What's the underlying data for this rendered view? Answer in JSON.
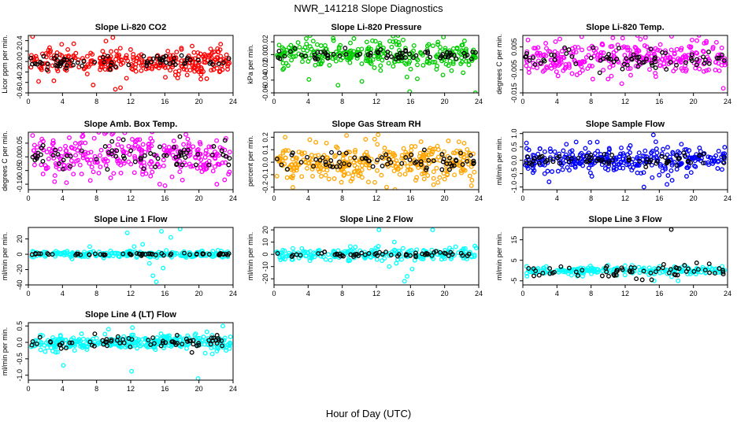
{
  "page": {
    "title": "NWR_141218  Slope Diagnostics",
    "xlabel": "Hour of Day (UTC)"
  },
  "chart_data": [
    {
      "type": "scatter",
      "title": "Slope Li-820 CO2",
      "ylabel": "Licor ppm per min.",
      "xlim": [
        0,
        24
      ],
      "ylim": [
        -0.6,
        0.5
      ],
      "xticks": [
        "0",
        "4",
        "8",
        "12",
        "16",
        "20",
        "24"
      ],
      "yticks": [
        "-0.6",
        "-0.4",
        "-0.2",
        "0.0",
        "0.2",
        "0.4"
      ],
      "series": [
        {
          "color": "#ff0000",
          "spread": 0.13,
          "count": 300,
          "values": [
            [
              10.2,
              -0.53
            ],
            [
              10.8,
              -0.5
            ],
            [
              7.6,
              -0.45
            ],
            [
              1.2,
              -0.38
            ],
            [
              0.5,
              0.48
            ],
            [
              9.9,
              0.46
            ],
            [
              11.5,
              -0.32
            ],
            [
              3.9,
              0.33
            ]
          ]
        },
        {
          "color": "#000000",
          "spread": 0.07,
          "count": 70,
          "values": []
        }
      ]
    },
    {
      "type": "scatter",
      "title": "Slope Li-820 Pressure",
      "ylabel": "kPa per min.",
      "xlim": [
        0,
        24
      ],
      "ylim": [
        -0.06,
        0.03
      ],
      "xticks": [
        "0",
        "4",
        "8",
        "12",
        "16",
        "20",
        "24"
      ],
      "yticks": [
        "-0.06",
        "-0.04",
        "-0.02",
        "0.00",
        "0.02"
      ],
      "series": [
        {
          "color": "#00cc00",
          "spread": 0.011,
          "count": 300,
          "values": [
            [
              15.9,
              -0.058
            ],
            [
              23.6,
              -0.06
            ],
            [
              7.5,
              -0.048
            ],
            [
              10.3,
              -0.042
            ],
            [
              19.8,
              -0.032
            ],
            [
              16.8,
              -0.038
            ],
            [
              12.5,
              -0.025
            ]
          ]
        },
        {
          "color": "#000000",
          "spread": 0.005,
          "count": 70,
          "values": []
        }
      ]
    },
    {
      "type": "scatter",
      "title": "Slope Li-820 Temp.",
      "ylabel": "degrees C per min.",
      "xlim": [
        0,
        24
      ],
      "ylim": [
        -0.015,
        0.01
      ],
      "xticks": [
        "0",
        "4",
        "8",
        "12",
        "16",
        "20",
        "24"
      ],
      "yticks": [
        "-0.015",
        "-0.005",
        "0.005"
      ],
      "series": [
        {
          "color": "#ff00ff",
          "spread": 0.004,
          "count": 300,
          "values": [
            [
              6.9,
              0.0095
            ],
            [
              23.5,
              -0.013
            ],
            [
              0.6,
              0.008
            ],
            [
              11.6,
              -0.011
            ],
            [
              8.2,
              -0.009
            ],
            [
              22.7,
              0.007
            ]
          ]
        },
        {
          "color": "#000000",
          "spread": 0.0025,
          "count": 70,
          "values": []
        }
      ]
    },
    {
      "type": "scatter",
      "title": "Slope Amb. Box Temp.",
      "ylabel": "degrees C per min.",
      "xlim": [
        0,
        24
      ],
      "ylim": [
        -0.12,
        0.09
      ],
      "xticks": [
        "0",
        "4",
        "8",
        "12",
        "16",
        "20",
        "24"
      ],
      "yticks": [
        "-0.10",
        "-0.05",
        "0.00",
        "0.05"
      ],
      "series": [
        {
          "color": "#ff00ff",
          "spread": 0.04,
          "count": 300,
          "values": [
            [
              9.1,
              0.09
            ],
            [
              11.3,
              0.088
            ],
            [
              0.5,
              0.078
            ],
            [
              22.1,
              -0.1
            ],
            [
              15.4,
              -0.1
            ],
            [
              4.8,
              0.07
            ]
          ]
        },
        {
          "color": "#000000",
          "spread": 0.025,
          "count": 70,
          "values": []
        }
      ]
    },
    {
      "type": "scatter",
      "title": "Slope Gas Stream RH",
      "ylabel": "percent per min.",
      "xlim": [
        0,
        24
      ],
      "ylim": [
        -0.22,
        0.24
      ],
      "xticks": [
        "0",
        "4",
        "8",
        "12",
        "16",
        "20",
        "24"
      ],
      "yticks": [
        "-0.2",
        "-0.1",
        "0.0",
        "0.1",
        "0.2"
      ],
      "series": [
        {
          "color": "#ffa500",
          "spread": 0.07,
          "count": 340,
          "values": [
            [
              12.2,
              0.22
            ],
            [
              1.3,
              0.2
            ],
            [
              13.2,
              -0.2
            ],
            [
              18.7,
              -0.18
            ],
            [
              7.9,
              -0.16
            ],
            [
              4.2,
              0.18
            ]
          ]
        },
        {
          "color": "#000000",
          "spread": 0.04,
          "count": 70,
          "values": []
        }
      ]
    },
    {
      "type": "scatter",
      "title": "Slope Sample Flow",
      "ylabel": "ml/min per min.",
      "xlim": [
        0,
        24
      ],
      "ylim": [
        -1.1,
        1.05
      ],
      "xticks": [
        "0",
        "4",
        "8",
        "12",
        "16",
        "20",
        "24"
      ],
      "yticks": [
        "-1.0",
        "-0.5",
        "0.0",
        "0.5",
        "1.0"
      ],
      "series": [
        {
          "color": "#0000ff",
          "spread": 0.24,
          "count": 320,
          "values": [
            [
              15.3,
              0.95
            ],
            [
              14.2,
              -1.0
            ],
            [
              16.9,
              -0.9
            ],
            [
              17.5,
              -0.75
            ],
            [
              12.6,
              0.55
            ],
            [
              5.1,
              0.6
            ],
            [
              19.2,
              -0.6
            ]
          ]
        },
        {
          "color": "#000000",
          "spread": 0.12,
          "count": 70,
          "values": []
        }
      ]
    },
    {
      "type": "scatter",
      "title": "Slope Line 1 Flow",
      "ylabel": "ml/min per min.",
      "xlim": [
        0,
        24
      ],
      "ylim": [
        -40,
        35
      ],
      "xticks": [
        "0",
        "4",
        "8",
        "12",
        "16",
        "20",
        "24"
      ],
      "yticks": [
        "-40",
        "-20",
        "0",
        "20"
      ],
      "series": [
        {
          "color": "#00ffff",
          "spread": 2.2,
          "count": 220,
          "values": [
            [
              17.8,
              33
            ],
            [
              15.6,
              30
            ],
            [
              11.6,
              28
            ],
            [
              16.7,
              22
            ],
            [
              14.6,
              -28
            ],
            [
              15.0,
              -36
            ],
            [
              13.4,
              13
            ],
            [
              12.4,
              10
            ],
            [
              14.2,
              -12
            ],
            [
              15.8,
              -18
            ],
            [
              7.2,
              10
            ]
          ]
        },
        {
          "color": "#000000",
          "spread": 0.8,
          "count": 60,
          "values": []
        }
      ]
    },
    {
      "type": "scatter",
      "title": "Slope Line 2 Flow",
      "ylabel": "ml/min per min.",
      "xlim": [
        0,
        24
      ],
      "ylim": [
        -25,
        22
      ],
      "xticks": [
        "0",
        "4",
        "8",
        "12",
        "16",
        "20",
        "24"
      ],
      "yticks": [
        "-20",
        "-10",
        "0",
        "10",
        "20"
      ],
      "series": [
        {
          "color": "#00ffff",
          "spread": 2.6,
          "count": 220,
          "values": [
            [
              12.3,
              20
            ],
            [
              18.6,
              20
            ],
            [
              15.6,
              -18
            ],
            [
              15.3,
              -22
            ],
            [
              14.1,
              10
            ],
            [
              13.5,
              -10
            ],
            [
              16.2,
              -12
            ]
          ]
        },
        {
          "color": "#000000",
          "spread": 1.2,
          "count": 60,
          "values": []
        }
      ]
    },
    {
      "type": "scatter",
      "title": "Slope Line 3 Flow",
      "ylabel": "ml/min per min.",
      "xlim": [
        0,
        24
      ],
      "ylim": [
        -7,
        21
      ],
      "xticks": [
        "0",
        "4",
        "8",
        "12",
        "16",
        "20",
        "24"
      ],
      "yticks": [
        "-5",
        "5",
        "15"
      ],
      "series": [
        {
          "color": "#00ffff",
          "spread": 1.0,
          "count": 220,
          "values": [
            [
              12.8,
              2.5
            ],
            [
              18.2,
              -5
            ],
            [
              15.4,
              -5
            ],
            [
              20.4,
              0.5
            ]
          ]
        },
        {
          "color": "#000000",
          "spread": 1.5,
          "count": 60,
          "values": [
            [
              17.4,
              20
            ],
            [
              13.3,
              -4
            ],
            [
              14.0,
              -4.5
            ],
            [
              15.1,
              -4.5
            ],
            [
              15.9,
              1
            ]
          ]
        }
      ]
    },
    {
      "type": "scatter",
      "title": "Slope Line 4 (LT) Flow",
      "ylabel": "ml/min per min.",
      "xlim": [
        0,
        24
      ],
      "ylim": [
        -1.15,
        0.6
      ],
      "xticks": [
        "0",
        "4",
        "8",
        "12",
        "16",
        "20",
        "24"
      ],
      "yticks": [
        "-1.0",
        "-0.5",
        "0.0",
        "0.5"
      ],
      "series": [
        {
          "color": "#00ffff",
          "spread": 0.11,
          "count": 320,
          "values": [
            [
              19.9,
              -1.1
            ],
            [
              12.1,
              -0.88
            ],
            [
              4.1,
              -0.7
            ],
            [
              22.8,
              0.5
            ],
            [
              9.4,
              0.4
            ],
            [
              12.2,
              0.45
            ],
            [
              3.2,
              -0.3
            ]
          ]
        },
        {
          "color": "#000000",
          "spread": 0.1,
          "count": 70,
          "values": []
        }
      ]
    }
  ]
}
